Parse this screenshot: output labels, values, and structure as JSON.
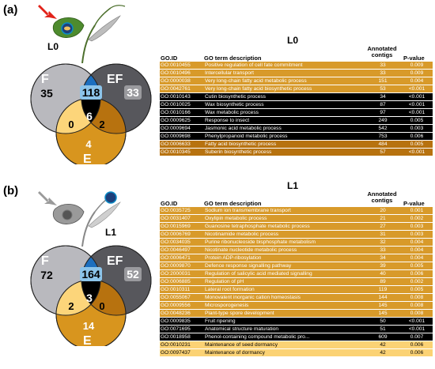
{
  "panels": [
    {
      "label": "(a)",
      "plant_label": "L0",
      "table_title": "L0",
      "venn": {
        "set_labels": {
          "F": "F",
          "EF": "EF",
          "E": "E"
        },
        "counts": {
          "F_only": "35",
          "EF_only": "33",
          "E_only": "4",
          "F_EF": "118",
          "F_E": "0",
          "EF_E": "2",
          "all": "6"
        }
      },
      "columns": {
        "go_id": "GO.ID",
        "desc": "GO term description",
        "ann": "Annotated contigs",
        "p": "P-value"
      },
      "rows": [
        {
          "id": "GO:0010455",
          "desc": "Positive regulation of cell fate commitment",
          "ann": "33",
          "p": "0.009",
          "style": "orange"
        },
        {
          "id": "GO:0010496",
          "desc": "Intercellular transport",
          "ann": "33",
          "p": "0.009",
          "style": "orange"
        },
        {
          "id": "GO:0000038",
          "desc": "Very long-chain fatty acid metabolic process",
          "ann": "151",
          "p": "0.004",
          "style": "orange"
        },
        {
          "id": "GO:0042761",
          "desc": "Very long-chain fatty acid biosynthetic process",
          "ann": "53",
          "p": "<0.001",
          "style": "orange"
        },
        {
          "id": "GO:0010143",
          "desc": "Cutin biosynthetic process",
          "ann": "34",
          "p": "<0.001",
          "style": "black"
        },
        {
          "id": "GO:0010025",
          "desc": "Wax biosynthetic process",
          "ann": "87",
          "p": "<0.001",
          "style": "black"
        },
        {
          "id": "GO:0010166",
          "desc": "Wax metabolic process",
          "ann": "97",
          "p": "<0.001",
          "style": "black"
        },
        {
          "id": "GO:0009625",
          "desc": "Response to insect",
          "ann": "249",
          "p": "0.005",
          "style": "black"
        },
        {
          "id": "GO:0009694",
          "desc": "Jasmonic acid metabolic process",
          "ann": "542",
          "p": "0.003",
          "style": "black"
        },
        {
          "id": "GO:0009698",
          "desc": "Phenylpropanoid metabolic process",
          "ann": "753",
          "p": "0.006",
          "style": "black"
        },
        {
          "id": "GO:0006633",
          "desc": "Fatty acid biosynthetic process",
          "ann": "484",
          "p": "0.005",
          "style": "brown"
        },
        {
          "id": "GO:0010345",
          "desc": "Suberin biosynthetic process",
          "ann": "57",
          "p": "<0.001",
          "style": "brown"
        }
      ]
    },
    {
      "label": "(b)",
      "plant_label": "L1",
      "table_title": "L1",
      "venn": {
        "set_labels": {
          "F": "F",
          "EF": "EF",
          "E": "E"
        },
        "counts": {
          "F_only": "72",
          "EF_only": "52",
          "E_only": "14",
          "F_EF": "164",
          "F_E": "2",
          "EF_E": "0",
          "all": "3"
        }
      },
      "columns": {
        "go_id": "GO.ID",
        "desc": "GO term description",
        "ann": "Annotated contigs",
        "p": "P-value"
      },
      "rows": [
        {
          "id": "GO:0035725",
          "desc": "Sodium ion transmembrane transport",
          "ann": "20",
          "p": "0.001",
          "style": "orange"
        },
        {
          "id": "GO:0031407",
          "desc": "Oxylipin metabolic process",
          "ann": "21",
          "p": "0.002",
          "style": "orange"
        },
        {
          "id": "GO:0015969",
          "desc": "Guanosine tetraphosphate metabolic process",
          "ann": "27",
          "p": "0.003",
          "style": "orange"
        },
        {
          "id": "GO:0006769",
          "desc": "Nicotinamide metabolic process",
          "ann": "31",
          "p": "0.003",
          "style": "orange"
        },
        {
          "id": "GO:0034035",
          "desc": "Purine ribonucleoside bisphosphate metabolism",
          "ann": "32",
          "p": "0.004",
          "style": "orange"
        },
        {
          "id": "GO:0046497",
          "desc": "Nicotinate nucleotide metabolic process",
          "ann": "33",
          "p": "0.004",
          "style": "orange"
        },
        {
          "id": "GO:0006471",
          "desc": "Protein ADP-ribosylation",
          "ann": "34",
          "p": "0.004",
          "style": "orange"
        },
        {
          "id": "GO:0009870",
          "desc": "Defence response signalling pathway",
          "ann": "39",
          "p": "0.005",
          "style": "orange"
        },
        {
          "id": "GO:2000031",
          "desc": "Regulation of salicylic acid mediated signalling",
          "ann": "40",
          "p": "0.006",
          "style": "orange"
        },
        {
          "id": "GO:0006885",
          "desc": "Regulation of pH",
          "ann": "89",
          "p": "0.002",
          "style": "orange"
        },
        {
          "id": "GO:0010311",
          "desc": "Lateral root formation",
          "ann": "119",
          "p": "0.005",
          "style": "orange"
        },
        {
          "id": "GO:0055067",
          "desc": "Monovalent inorganic cation homeostasis",
          "ann": "144",
          "p": "0.008",
          "style": "orange"
        },
        {
          "id": "GO:0009556",
          "desc": "Microsporogenesis",
          "ann": "145",
          "p": "0.008",
          "style": "orange"
        },
        {
          "id": "GO:0048236",
          "desc": "Plant-type spore development",
          "ann": "145",
          "p": "0.008",
          "style": "orange"
        },
        {
          "id": "GO:0009835",
          "desc": "Fruit ripening",
          "ann": "50",
          "p": "<0.001",
          "style": "black"
        },
        {
          "id": "GO:0071695",
          "desc": "Anatomical structure maturation",
          "ann": "51",
          "p": "<0.001",
          "style": "black"
        },
        {
          "id": "GO:0018958",
          "desc": "Phenol-containing compound metabolic pro...",
          "ann": "609",
          "p": "0.007",
          "style": "black"
        },
        {
          "id": "GO:0010231",
          "desc": "Maintenance of seed dormancy",
          "ann": "42",
          "p": "0.006",
          "style": "yellow"
        },
        {
          "id": "GO:0097437",
          "desc": "Maintenance of dormancy",
          "ann": "42",
          "p": "0.006",
          "style": "yellow"
        }
      ]
    }
  ],
  "colors": {
    "orange": "#d89a2a",
    "black": "#000000",
    "brown": "#b7720f",
    "yellow": "#fbd274",
    "F": "#b9b9be",
    "EF": "#57575c",
    "E": "#d8951e",
    "F_EF": "#1c6fbf",
    "F_E": "#fcd57a",
    "arrow_a": "#e2231a",
    "arrow_b": "#9a9a9a"
  }
}
